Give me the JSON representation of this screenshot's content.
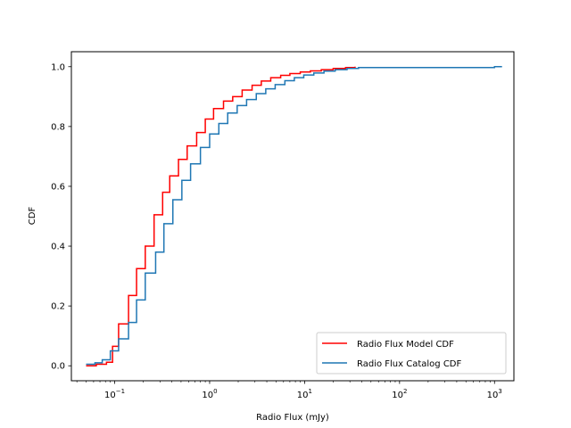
{
  "chart_data": {
    "type": "line",
    "step": true,
    "title": "",
    "xlabel": "Radio Flux (mJy)",
    "ylabel": "CDF",
    "xscale": "log",
    "xlim": [
      0.035,
      1600
    ],
    "ylim": [
      -0.05,
      1.05
    ],
    "xticks": [
      {
        "value": 0.1,
        "label": "10",
        "exp": "−1"
      },
      {
        "value": 1,
        "label": "10",
        "exp": "0"
      },
      {
        "value": 10,
        "label": "10",
        "exp": "1"
      },
      {
        "value": 100,
        "label": "10",
        "exp": "2"
      },
      {
        "value": 1000,
        "label": "10",
        "exp": "3"
      }
    ],
    "yticks": [
      {
        "value": 0.0,
        "label": "0.0"
      },
      {
        "value": 0.2,
        "label": "0.2"
      },
      {
        "value": 0.4,
        "label": "0.4"
      },
      {
        "value": 0.6,
        "label": "0.6"
      },
      {
        "value": 0.8,
        "label": "0.8"
      },
      {
        "value": 1.0,
        "label": "1.0"
      }
    ],
    "grid": false,
    "legend_position": "lower-right",
    "series": [
      {
        "name": "Radio Flux Model CDF",
        "color": "#ff0000",
        "x": [
          0.05,
          0.064,
          0.082,
          0.095,
          0.11,
          0.14,
          0.17,
          0.21,
          0.26,
          0.32,
          0.38,
          0.47,
          0.58,
          0.73,
          0.9,
          1.1,
          1.4,
          1.75,
          2.2,
          2.8,
          3.5,
          4.4,
          5.6,
          7.0,
          9.0,
          11.5,
          15,
          20,
          27,
          34
        ],
        "y": [
          0.0,
          0.005,
          0.012,
          0.065,
          0.14,
          0.235,
          0.325,
          0.4,
          0.505,
          0.58,
          0.635,
          0.69,
          0.735,
          0.78,
          0.825,
          0.86,
          0.885,
          0.9,
          0.922,
          0.938,
          0.952,
          0.963,
          0.971,
          0.977,
          0.982,
          0.986,
          0.99,
          0.994,
          0.997,
          1.0
        ]
      },
      {
        "name": "Radio Flux Catalog CDF",
        "color": "#1f77b4",
        "x": [
          0.05,
          0.062,
          0.074,
          0.09,
          0.11,
          0.14,
          0.17,
          0.21,
          0.27,
          0.33,
          0.41,
          0.51,
          0.63,
          0.8,
          1.0,
          1.25,
          1.55,
          1.95,
          2.45,
          3.1,
          3.9,
          4.9,
          6.2,
          7.8,
          9.8,
          12.5,
          16,
          21,
          28,
          37,
          1000,
          1200
        ],
        "y": [
          0.005,
          0.01,
          0.02,
          0.05,
          0.09,
          0.145,
          0.22,
          0.31,
          0.38,
          0.475,
          0.555,
          0.62,
          0.675,
          0.73,
          0.775,
          0.81,
          0.845,
          0.87,
          0.89,
          0.91,
          0.926,
          0.94,
          0.953,
          0.963,
          0.972,
          0.979,
          0.985,
          0.99,
          0.994,
          0.997,
          1.0,
          1.0
        ]
      }
    ]
  }
}
